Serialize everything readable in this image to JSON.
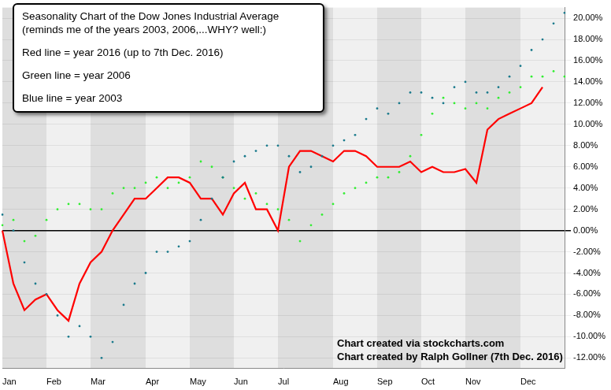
{
  "chart_data": {
    "type": "line",
    "annotations": [
      [
        "Seasonality Chart of the Dow Jones Industrial Average",
        "(reminds me of the years 2003, 2006,...WHY? well:)",
        "Red line = year 2016 (up to 7th Dec. 2016)",
        "Green line = year 2006",
        "Blue line = year 2003"
      ],
      [
        "Chart created via stockcharts.com",
        "Chart created by Ralph Gollner (7th Dec. 2016)"
      ]
    ],
    "categories": [
      "Jan",
      null,
      null,
      null,
      "Feb",
      null,
      null,
      null,
      "Mar",
      null,
      null,
      null,
      null,
      "Apr",
      null,
      null,
      null,
      "May",
      null,
      null,
      null,
      "Jun",
      null,
      null,
      null,
      "Jul",
      null,
      null,
      null,
      null,
      "Aug",
      null,
      null,
      null,
      "Sep",
      null,
      null,
      null,
      "Oct",
      null,
      null,
      null,
      "Nov",
      null,
      null,
      null,
      null,
      "Dec",
      null,
      null,
      null,
      null
    ],
    "series": [
      {
        "color": "#ff0000",
        "line_style": "solid",
        "marker": "none",
        "values": [
          0,
          -5,
          -7.5,
          -6.5,
          -6,
          -7.5,
          -8.5,
          -5,
          -3,
          -2,
          0,
          1.5,
          3,
          3,
          4,
          5,
          5,
          4.5,
          3,
          3,
          1.5,
          3.5,
          4.5,
          2,
          2,
          0,
          6,
          7.5,
          7.5,
          7,
          6.5,
          7.5,
          7.5,
          7,
          6,
          6,
          6,
          6.5,
          5.5,
          6,
          5.5,
          5.5,
          5.8,
          4.5,
          9.5,
          10.5,
          11,
          11.5,
          12,
          13.5,
          null,
          null
        ]
      },
      {
        "color": "#33ee33",
        "line_style": "none",
        "marker": "dot",
        "values": [
          0.5,
          1,
          -1,
          -0.5,
          1,
          2,
          2.5,
          2.5,
          2,
          2,
          3.5,
          4,
          4,
          4.5,
          5,
          4,
          4.5,
          5,
          6.5,
          6,
          5,
          4,
          3,
          3.5,
          2.5,
          2,
          1,
          -1,
          0.5,
          1.5,
          2.5,
          3.5,
          4,
          4.5,
          5,
          5,
          5.5,
          7,
          9,
          11,
          12.5,
          12,
          11.5,
          12,
          11.5,
          12.5,
          13,
          13.5,
          14.5,
          14.5,
          15,
          14.5
        ]
      },
      {
        "color": "#1a7a8c",
        "line_style": "none",
        "marker": "dot",
        "values": [
          1.5,
          0,
          -3,
          -5,
          -6,
          -8,
          -10,
          -9,
          -10,
          -12,
          -10.5,
          -7,
          -5,
          -4,
          -2,
          -2,
          -1.5,
          -1,
          1,
          3,
          5,
          6.5,
          7,
          7.5,
          8,
          8,
          7,
          5.5,
          6,
          7,
          8,
          8.5,
          9,
          10.5,
          11.5,
          11,
          12,
          13,
          13,
          12.5,
          12,
          13.5,
          14,
          13,
          13,
          13.5,
          14.5,
          15.5,
          17,
          18,
          19.5,
          20.5
        ]
      }
    ],
    "ylim": [
      -13,
      21
    ],
    "yticks": [
      {
        "value": -12,
        "label": "-12.00%"
      },
      {
        "value": -10,
        "label": "-10.00%"
      },
      {
        "value": -8,
        "label": "-8.00%"
      },
      {
        "value": -6,
        "label": "-6.00%"
      },
      {
        "value": -4,
        "label": "-4.00%"
      },
      {
        "value": -2,
        "label": "-2.00%"
      },
      {
        "value": 0,
        "label": "0.00%"
      },
      {
        "value": 2,
        "label": "2.00%"
      },
      {
        "value": 4,
        "label": "4.00%"
      },
      {
        "value": 6,
        "label": "6.00%"
      },
      {
        "value": 8,
        "label": "8.00%"
      },
      {
        "value": 10,
        "label": "10.00%"
      },
      {
        "value": 12,
        "label": "12.00%"
      },
      {
        "value": 14,
        "label": "14.00%"
      },
      {
        "value": 16,
        "label": "16.00%"
      },
      {
        "value": 18,
        "label": "18.00%"
      },
      {
        "value": 20,
        "label": "20.00%"
      }
    ],
    "grid": true
  }
}
